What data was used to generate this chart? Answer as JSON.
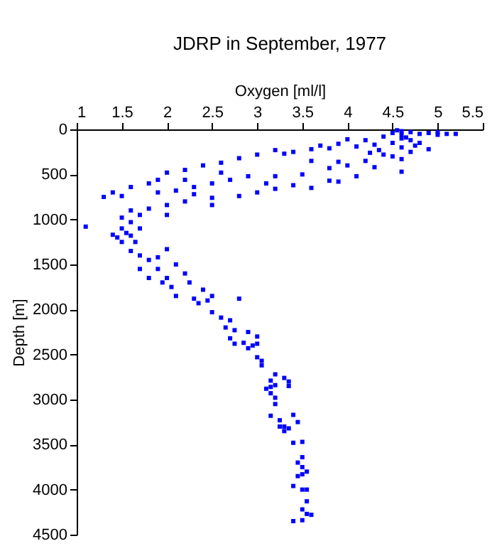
{
  "chart_data": {
    "type": "scatter",
    "title": "JDRP in September, 1977",
    "xlabel": "Oxygen [ml/l]",
    "ylabel": "Depth [m]",
    "x": [
      4.6,
      4.7,
      4.5,
      4.8,
      4.6,
      4.9,
      5.0,
      5.1,
      5.2,
      4.4,
      4.6,
      4.7,
      4.5,
      4.8,
      4.3,
      4.6,
      4.9,
      4.7,
      4.4,
      4.2,
      4.0,
      4.1,
      3.9,
      4.55,
      4.65,
      4.75,
      5.0,
      4.35,
      4.5,
      4.6,
      4.25,
      3.6,
      3.4,
      3.2,
      3.0,
      2.8,
      2.6,
      2.4,
      2.2,
      2.0,
      1.9,
      1.8,
      1.6,
      1.4,
      1.3,
      1.5,
      3.7,
      3.8,
      3.3,
      4.2,
      4.0,
      3.8,
      3.5,
      3.2,
      2.9,
      2.7,
      2.5,
      2.3,
      2.1,
      1.9,
      3.6,
      3.9,
      4.3,
      3.1,
      2.6,
      2.2,
      4.6,
      4.1,
      3.8,
      3.4,
      3.0,
      2.8,
      2.5,
      2.2,
      2.0,
      1.8,
      1.7,
      2.0,
      2.5,
      3.2,
      3.6,
      3.9,
      2.3,
      1.6,
      1.5,
      1.6,
      1.5,
      1.55,
      1.45,
      1.6,
      1.65,
      1.1,
      1.7,
      1.5,
      1.4,
      1.6,
      1.7,
      1.8,
      2.0,
      1.9,
      1.7,
      1.9,
      2.1,
      1.8,
      2.0,
      2.2,
      1.95,
      2.05,
      2.25,
      2.4,
      2.1,
      2.3,
      2.5,
      2.8,
      2.35,
      2.45,
      2.5,
      2.6,
      2.7,
      2.65,
      2.75,
      2.7,
      2.9,
      3.0,
      2.75,
      2.85,
      2.95,
      2.9,
      3.0,
      3.0,
      3.05,
      3.05,
      3.2,
      3.15,
      3.3,
      3.35,
      3.15,
      3.2,
      3.1,
      3.35,
      3.15,
      3.2,
      3.2,
      3.15,
      3.25,
      3.3,
      3.4,
      3.45,
      3.25,
      3.3,
      3.35,
      3.4,
      3.5,
      3.45,
      3.5,
      3.5,
      3.5,
      3.45,
      3.55,
      3.4,
      3.5,
      3.55,
      3.55,
      3.5,
      3.55,
      3.6,
      3.4,
      3.5
    ],
    "values": [
      20,
      30,
      40,
      50,
      60,
      40,
      60,
      50,
      50,
      80,
      100,
      120,
      150,
      150,
      170,
      200,
      220,
      250,
      280,
      120,
      110,
      190,
      160,
      10,
      90,
      180,
      30,
      230,
      300,
      330,
      260,
      220,
      250,
      230,
      280,
      320,
      370,
      400,
      450,
      480,
      560,
      600,
      640,
      700,
      750,
      740,
      180,
      210,
      270,
      350,
      400,
      430,
      500,
      520,
      520,
      560,
      600,
      640,
      680,
      700,
      350,
      360,
      420,
      600,
      480,
      560,
      470,
      520,
      570,
      620,
      700,
      740,
      760,
      800,
      840,
      880,
      950,
      950,
      840,
      660,
      650,
      580,
      720,
      900,
      980,
      1030,
      1100,
      1150,
      1200,
      1180,
      1250,
      1080,
      1100,
      1250,
      1170,
      1350,
      1400,
      1450,
      1330,
      1420,
      1550,
      1550,
      1500,
      1650,
      1650,
      1600,
      1700,
      1750,
      1700,
      1780,
      1850,
      1880,
      1850,
      1880,
      1930,
      1900,
      2030,
      2090,
      2120,
      2200,
      2230,
      2320,
      2250,
      2300,
      2380,
      2370,
      2400,
      2430,
      2380,
      2530,
      2570,
      2620,
      2720,
      2790,
      2760,
      2800,
      2860,
      2840,
      2880,
      2850,
      2930,
      2980,
      3050,
      3180,
      3230,
      3300,
      3170,
      3250,
      3300,
      3350,
      3320,
      3480,
      3470,
      3700,
      3640,
      3750,
      3830,
      3850,
      3800,
      3960,
      4000,
      4000,
      4130,
      4220,
      4270,
      4280,
      4350,
      4340
    ],
    "color": "#0000ff",
    "marker": "square",
    "grid": false,
    "xlim": [
      1,
      5.5
    ],
    "xticks": [
      1,
      1.5,
      2,
      2.5,
      3,
      3.5,
      4,
      4.5,
      5,
      5.5
    ],
    "ylim": [
      4500,
      0
    ],
    "yticks": [
      0,
      500,
      1000,
      1500,
      2000,
      2500,
      3000,
      3500,
      4000,
      4500
    ]
  }
}
